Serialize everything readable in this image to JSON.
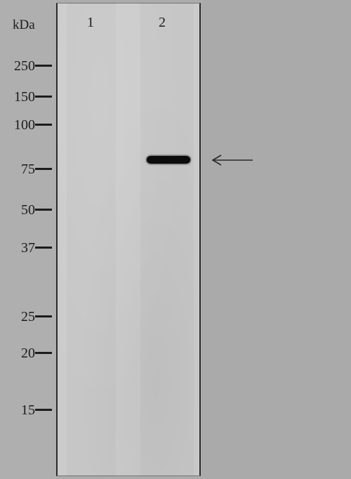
{
  "axis": {
    "unit_label": "kDa"
  },
  "lanes": [
    {
      "label": "1"
    },
    {
      "label": "2"
    }
  ],
  "markers": [
    {
      "label": "250",
      "kda": 250
    },
    {
      "label": "150",
      "kda": 150
    },
    {
      "label": "100",
      "kda": 100
    },
    {
      "label": "75",
      "kda": 75
    },
    {
      "label": "50",
      "kda": 50
    },
    {
      "label": "37",
      "kda": 37
    },
    {
      "label": "25",
      "kda": 25
    },
    {
      "label": "20",
      "kda": 20
    },
    {
      "label": "15",
      "kda": 15
    }
  ],
  "bands": [
    {
      "lane": "2",
      "approx_kda": 80,
      "intensity": "strong"
    }
  ],
  "colors": {
    "membrane": "#cbcbcb",
    "background": "#acacac",
    "band": "#0c0c0c",
    "text": "#1c1c1c"
  },
  "icons": {
    "band_indicator": "left-arrow-icon"
  }
}
